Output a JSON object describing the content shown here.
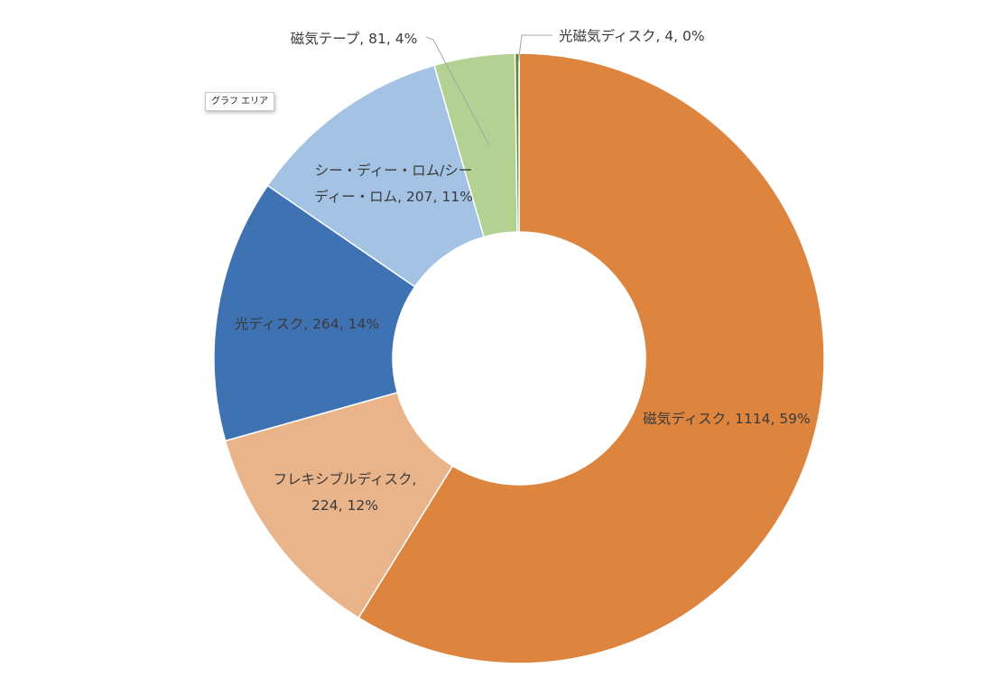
{
  "tooltip": {
    "text": "グラフ エリア"
  },
  "chart_data": {
    "type": "pie",
    "variant": "doughnut",
    "title": "",
    "slices": [
      {
        "name": "磁気ディスク",
        "value": 1114,
        "percent": "59%",
        "color": "#dd843e",
        "label_lines": [
          "磁気ディスク, 1114, 59%"
        ]
      },
      {
        "name": "フレキシブルディスク",
        "value": 224,
        "percent": "12%",
        "color": "#e9b48a",
        "label_lines": [
          "フレキシブルディスク,",
          "224, 12%"
        ]
      },
      {
        "name": "光ディスク",
        "value": 264,
        "percent": "14%",
        "color": "#3e72b3",
        "label_lines": [
          "光ディスク, 264, 14%"
        ]
      },
      {
        "name": "シー・ディー・ロム/シーディー・ロム",
        "value": 207,
        "percent": "11%",
        "color": "#a3c2e4",
        "label_lines": [
          "シー・ディー・ロム/シー",
          "ディー・ロム, 207, 11%"
        ]
      },
      {
        "name": "磁気テープ",
        "value": 81,
        "percent": "4%",
        "color": "#b2d192",
        "label_lines": [
          "磁気テープ, 81, 4%"
        ]
      },
      {
        "name": "光磁気ディスク",
        "value": 4,
        "percent": "0%",
        "color": "#5b8b3a",
        "label_lines": [
          "光磁気ディスク, 4, 0%"
        ]
      }
    ]
  }
}
